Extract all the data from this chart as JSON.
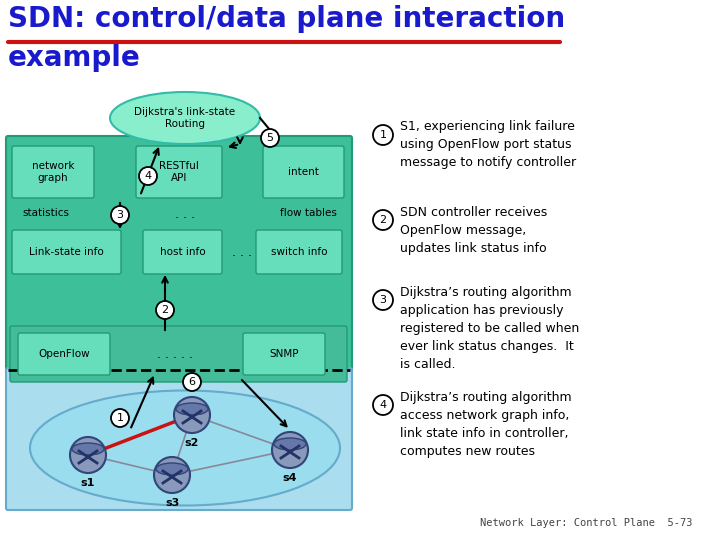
{
  "title_line1": "SDN: control/data plane interaction",
  "title_line2": "example",
  "title_color": "#1a1acd",
  "title_underline_color": "#cc1111",
  "bg_color": "#ffffff",
  "controller_bg": "#3dbf99",
  "box_color": "#66ddbb",
  "ellipse_color": "#88eecc",
  "dataplane_bg": "#aaddee",
  "openflow_row_bg": "#44bb99",
  "step1_line1": "S1, experiencing link failure",
  "step1_line2": "using OpenFlow port status",
  "step1_line3": "message to notify controller",
  "step2_line1": "SDN controller receives",
  "step2_line2": "OpenFlow message,",
  "step2_line3": "updates link status info",
  "step3_line1": "Dijkstra’s routing algorithm",
  "step3_line2": "application has previously",
  "step3_line3": "registered to be called when",
  "step3_line4": "ever link status changes.  It",
  "step3_line5": "is called.",
  "step4_line1": "Dijkstra’s routing algorithm",
  "step4_line2": "access network graph info,",
  "step4_line3": "link state info in controller,",
  "step4_line4": "computes new routes",
  "footer": "Network Layer: Control Plane  5-73"
}
